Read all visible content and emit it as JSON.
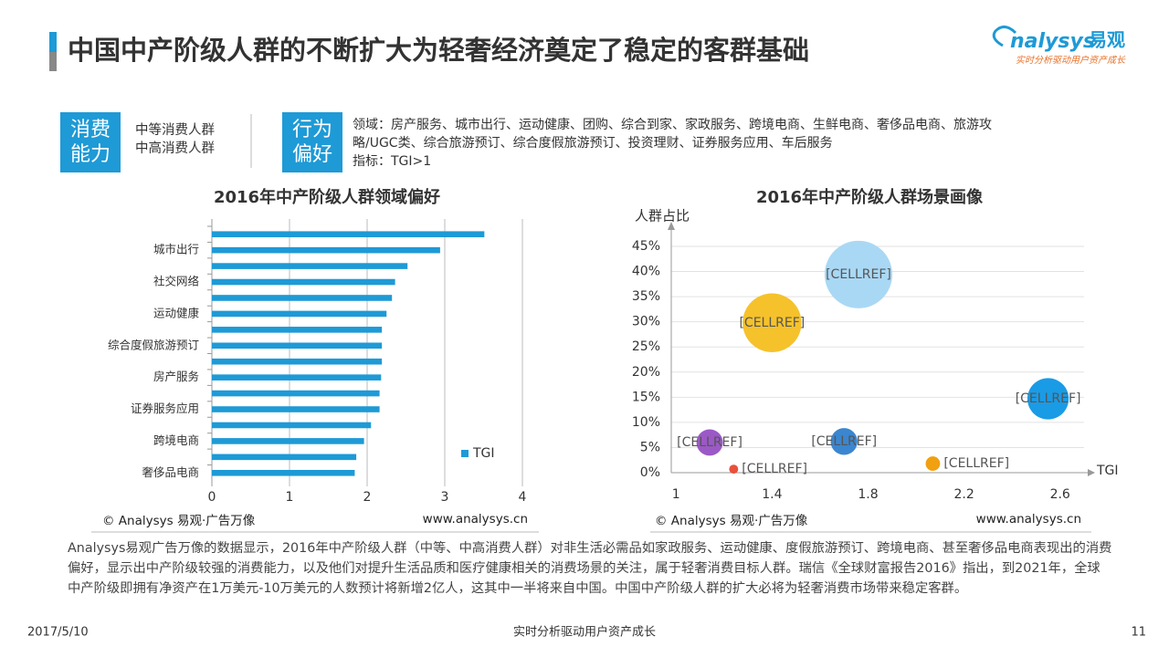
{
  "header": {
    "title": "中国中产阶级人群的不断扩大为轻奢经济奠定了稳定的客群基础",
    "logo": "nalysys",
    "logo_cn": "易观",
    "logo_slogan": "实时分析驱动用户资产成长"
  },
  "info": {
    "ability_label": "消费能力",
    "ability_items": [
      "中等消费人群",
      "中高消费人群"
    ],
    "preference_label": "行为偏好",
    "preference_lines": [
      "领域：房产服务、城市出行、运动健康、团购、综合到家、家政服务、跨境电商、生鲜电商、奢侈品电商、旅游攻",
      "略/UGC类、综合旅游预订、综合度假旅游预订、投资理财、证券服务应用、车后服务",
      "指标：TGI>1"
    ]
  },
  "chart_data": [
    {
      "type": "bar",
      "orientation": "horizontal",
      "title": "2016年中产阶级人群领域偏好",
      "categories": [
        null,
        "城市出行",
        null,
        "社交网络",
        null,
        "运动健康",
        null,
        "综合度假旅游预订",
        null,
        "房产服务",
        null,
        "证券服务应用",
        null,
        "跨境电商",
        null,
        "奢侈品电商"
      ],
      "series": [
        {
          "name": "TGI",
          "color": "#1e9ad6",
          "values": [
            3.51,
            2.94,
            2.52,
            2.36,
            2.32,
            2.25,
            2.19,
            2.19,
            2.19,
            2.18,
            2.16,
            2.16,
            2.05,
            1.96,
            1.86,
            1.84
          ]
        }
      ],
      "xlim": [
        0,
        4
      ],
      "xticks": [
        0,
        1,
        2,
        3,
        4
      ],
      "grid": true,
      "legend": "lower right",
      "source": "© Analysys 易观·广告万像",
      "site": "www.analysys.cn"
    },
    {
      "type": "scatter",
      "title": "2016年中产阶级人群场景画像",
      "xlabel": "TGI",
      "ylabel": "人群占比",
      "x": [
        1.76,
        1.4,
        2.55,
        1.14,
        1.7,
        2.07,
        1.24
      ],
      "values": [
        39.4,
        29.8,
        14.7,
        6.0,
        6.2,
        1.8,
        0.7
      ],
      "value_labels": [
        "[CELLREF]",
        "[CELLREF]",
        "[CELLREF]",
        "[CELLREF]",
        "[CELLREF]",
        "[CELLREF]",
        "[CELLREF]"
      ],
      "colors": [
        "#a9d8f5",
        "#f5c22b",
        "#1a9be6",
        "#9b59c6",
        "#3b86d0",
        "#f0a010",
        "#e8503a"
      ],
      "xlim": [
        0.98,
        2.7
      ],
      "xticks": [
        1,
        1.4,
        1.8,
        2.2,
        2.6
      ],
      "ylim": [
        0,
        45
      ],
      "yticks": [
        {
          "value": 0,
          "label": "0%"
        },
        {
          "value": 5,
          "label": "5%"
        },
        {
          "value": 10,
          "label": "10%"
        },
        {
          "value": 15,
          "label": "15%"
        },
        {
          "value": 20,
          "label": "20%"
        },
        {
          "value": 25,
          "label": "25%"
        },
        {
          "value": 30,
          "label": "30%"
        },
        {
          "value": 35,
          "label": "35%"
        },
        {
          "value": 40,
          "label": "40%"
        },
        {
          "value": 45,
          "label": "45%"
        }
      ],
      "grid": true,
      "source": "© Analysys 易观·广告万像",
      "site": "www.analysys.cn"
    }
  ],
  "paragraph": "Analysys易观广告万像的数据显示，2016年中产阶级人群（中等、中高消费人群）对非生活必需品如家政服务、运动健康、度假旅游预订、跨境电商、甚至奢侈品电商表现出的消费偏好，显示出中产阶级较强的消费能力，以及他们对提升生活品质和医疗健康相关的消费场景的关注，属于轻奢消费目标人群。瑞信《全球财富报告2016》指出，到2021年，全球中产阶级即拥有净资产在1万美元-10万美元的人数预计将新增2亿人，这其中一半将来自中国。中国中产阶级人群的扩大必将为轻奢消费市场带来稳定客群。",
  "footer": {
    "date": "2017/5/10",
    "slogan": "实时分析驱动用户资产成长",
    "page": "11"
  }
}
